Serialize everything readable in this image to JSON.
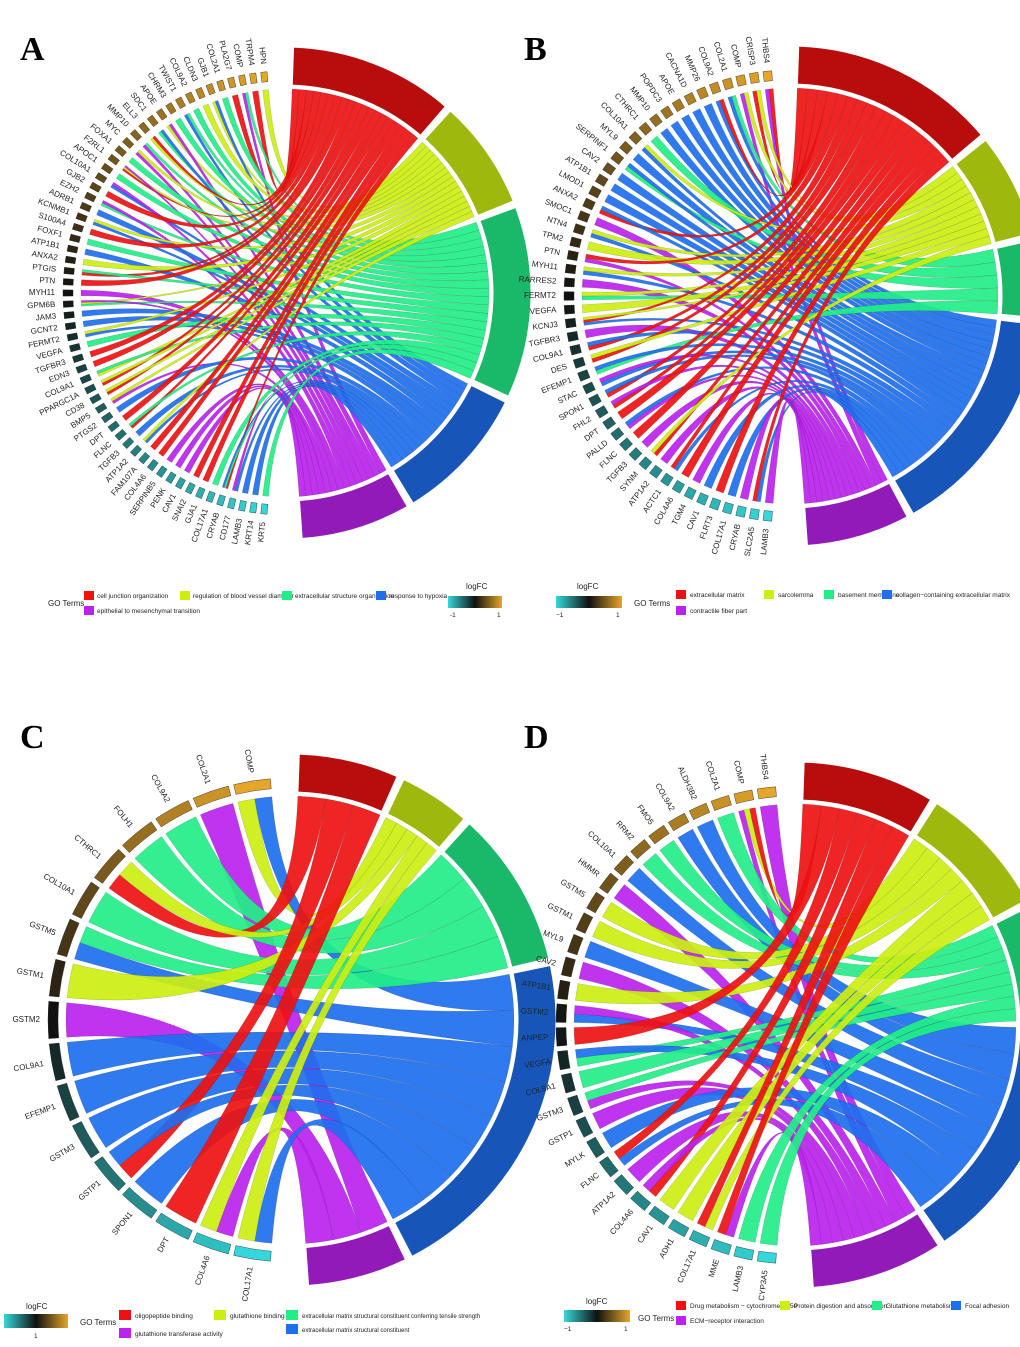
{
  "panels": [
    {
      "letter": "A",
      "genes": [
        "HPN",
        "TRPM4",
        "COMP",
        "PLA2G7",
        "COL2A1",
        "GJB1",
        "CLDN3",
        "COL9A2",
        "TWIST1",
        "CHRM3",
        "APOE",
        "SDC1",
        "ELL3",
        "MMP10",
        "MYC",
        "FOXA1",
        "F2RL1",
        "APOC1",
        "COL10A1",
        "GJB2",
        "EZH2",
        "ADRB1",
        "KCNMB1",
        "S100A4",
        "FOXF1",
        "ATP1B1",
        "ANXA2",
        "PTGIS",
        "PTN",
        "MYH11",
        "GPM6B",
        "JAM3",
        "GCNT2",
        "FERMT2",
        "VEGFA",
        "TGFBR3",
        "EDN3",
        "COL9A1",
        "PPARGC1A",
        "CD38",
        "BMP5",
        "PTGS2",
        "DPT",
        "FLNC",
        "TGFB3",
        "ATP1A2",
        "FAM107A",
        "COL4A6",
        "SERPINB5",
        "PENK",
        "CAV1",
        "SNAI2",
        "GJA1",
        "COL17A1",
        "CRYAB",
        "CD177",
        "LAMB3",
        "KRT14",
        "KRT5"
      ],
      "terms": [
        {
          "name": "cell junction organization",
          "color": "#ee1111"
        },
        {
          "name": "regulation of blood vessel diameter",
          "color": "#ccee11"
        },
        {
          "name": "extracellular structure organization",
          "color": "#22ee88"
        },
        {
          "name": "response to hypoxia",
          "color": "#1e6fee"
        },
        {
          "name": "epithelial to mesenchymal transition",
          "color": "#bb22ee"
        }
      ],
      "term_weights": [
        12,
        8,
        14,
        10,
        8
      ],
      "legend_title": "GO Terms",
      "logfc_title": "logFC",
      "logfc_min": "-1",
      "logfc_max": "1"
    },
    {
      "letter": "B",
      "genes": [
        "THBS4",
        "CRISP3",
        "COMP",
        "COL2A1",
        "COL9A2",
        "MMP26",
        "CACNA1D",
        "APOE",
        "POPDC3",
        "MMP10",
        "CTHRC1",
        "COL10A1",
        "MYL9",
        "SERPINF1",
        "CAV2",
        "ATP1B1",
        "LMOD1",
        "ANXA2",
        "SMOC1",
        "NTN4",
        "TPM2",
        "PTN",
        "MYH11",
        "RARRES2",
        "FERMT2",
        "VEGFA",
        "KCNJ3",
        "TGFBR3",
        "COL9A1",
        "DES",
        "EFEMP1",
        "STAC",
        "SPON1",
        "FHL2",
        "DPT",
        "PALLD",
        "FLNC",
        "TGFB3",
        "SYNM",
        "ATP1A2",
        "ACTC1",
        "COL4A6",
        "TGM4",
        "CAV1",
        "FLRT3",
        "COL17A1",
        "CRYAB",
        "SLC2A5",
        "LAMB3"
      ],
      "terms": [
        {
          "name": "extracellular matrix",
          "color": "#ee1111"
        },
        {
          "name": "sarcolemma",
          "color": "#ccee11"
        },
        {
          "name": "basement membrane",
          "color": "#22ee88"
        },
        {
          "name": "collagen−containing extracellular matrix",
          "color": "#1e6fee"
        },
        {
          "name": "contractile fiber part",
          "color": "#bb22ee"
        }
      ],
      "term_weights": [
        16,
        8,
        6,
        18,
        8
      ],
      "legend_title": "GO Terms",
      "logfc_title": "logFC",
      "logfc_min": "−1",
      "logfc_max": "1"
    },
    {
      "letter": "C",
      "genes": [
        "COMP",
        "COL2A1",
        "COL9A2",
        "FOLH1",
        "CTHRC1",
        "COL10A1",
        "GSTM5",
        "GSTM1",
        "GSTM2",
        "COL9A1",
        "EFEMP1",
        "GSTM3",
        "GSTP1",
        "SPON1",
        "DPT",
        "COL4A6",
        "COL17A1"
      ],
      "terms": [
        {
          "name": "oligopeptide binding",
          "color": "#ee1111"
        },
        {
          "name": "glutathione binding",
          "color": "#ccee11"
        },
        {
          "name": "extracellular matrix structural constituent conferring tensile strength",
          "color": "#22ee88"
        },
        {
          "name": "extracellular matrix structural constituent",
          "color": "#1e6fee"
        },
        {
          "name": "glutathione transferase activity",
          "color": "#bb22ee"
        }
      ],
      "term_weights": [
        7,
        5,
        11,
        24,
        7
      ],
      "legend_title": "GO Terms",
      "logfc_title": "logFC",
      "logfc_min": "",
      "logfc_max": "1"
    },
    {
      "letter": "D",
      "genes": [
        "THBS4",
        "COMP",
        "COL2A1",
        "ALDH3B2",
        "COL9A2",
        "FMO5",
        "RRM2",
        "COL10A1",
        "HMMR",
        "GSTM5",
        "GSTM1",
        "MYL9",
        "CAV2",
        "ATP1B1",
        "GSTM2",
        "ANPEP",
        "VEGFA",
        "COL9A1",
        "GSTM3",
        "GSTP1",
        "MYLK",
        "FLNC",
        "ATP1A2",
        "COL4A6",
        "CAV1",
        "ADH1",
        "COL17A1",
        "MME",
        "LAMB3",
        "CYP3A5"
      ],
      "terms": [
        {
          "name": "Drug metabolism − cytochrome P450",
          "color": "#ee1111"
        },
        {
          "name": "Protein digestion and absorption",
          "color": "#ccee11"
        },
        {
          "name": "Glutathione metabolism",
          "color": "#22ee88"
        },
        {
          "name": "Focal adhesion",
          "color": "#1e6fee"
        },
        {
          "name": "ECM−receptor interaction",
          "color": "#bb22ee"
        }
      ],
      "term_weights": [
        9,
        9,
        8,
        17,
        9
      ],
      "legend_title": "GO Terms",
      "logfc_title": "logFC",
      "logfc_min": "−1",
      "logfc_max": "1"
    }
  ]
}
